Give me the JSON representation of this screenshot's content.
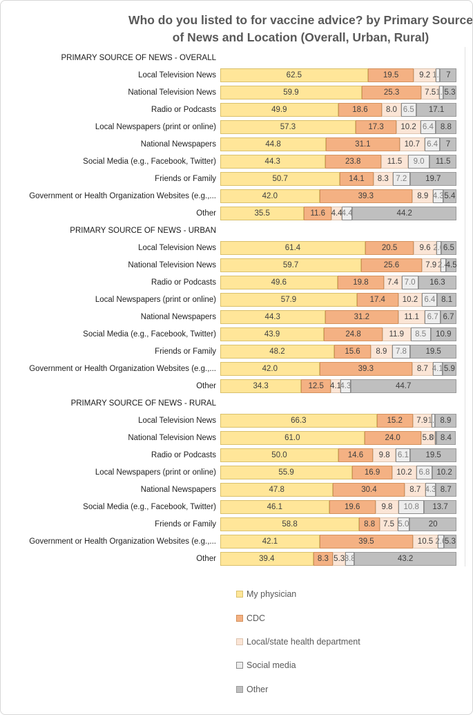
{
  "chart_data": {
    "type": "bar",
    "stacked": true,
    "orientation": "horizontal",
    "title": "Who do you listed to for vaccine advice? by Primary Source of News and Location (Overall, Urban, Rural)",
    "xlim": [
      0,
      100
    ],
    "grid": false,
    "legend_position": "bottom",
    "title_color": "#595959",
    "series": [
      {
        "name": "My physician",
        "color": "#FFE699",
        "border_color": "#d9c06b",
        "label_color": "#3f3f3f"
      },
      {
        "name": "CDC",
        "color": "#F4B183",
        "border_color": "#d3915c",
        "label_color": "#3f3f3f"
      },
      {
        "name": "Local/state  health department",
        "color": "#FBE5D6",
        "border_color": "#dcc4af",
        "label_color": "#3f3f3f"
      },
      {
        "name": "Social media",
        "color": "#EDEDED",
        "border_color": "#8a8a8a",
        "label_color": "#7f7f7f"
      },
      {
        "name": "Other",
        "color": "#BFBFBF",
        "border_color": "#9a9a9a",
        "label_color": "#3f3f3f"
      }
    ],
    "sections": [
      {
        "header": "PRIMARY SOURCE OF NEWS - OVERALL",
        "rows": [
          {
            "label": "Local Television News",
            "values": [
              "62.5",
              "19.5",
              "9.2",
              "1.9",
              "7"
            ]
          },
          {
            "label": "National Television News",
            "values": [
              "59.9",
              "25.3",
              "7.5",
              "1.9",
              "5.3"
            ]
          },
          {
            "label": "Radio or Podcasts",
            "values": [
              "49.9",
              "18.6",
              "8.0",
              "6.5",
              "17.1"
            ]
          },
          {
            "label": "Local Newspapers (print or online)",
            "values": [
              "57.3",
              "17.3",
              "10.2",
              "6.4",
              "8.8"
            ]
          },
          {
            "label": "National Newspapers",
            "values": [
              "44.8",
              "31.1",
              "10.7",
              "6.4",
              "7"
            ]
          },
          {
            "label": "Social Media (e.g., Facebook, Twitter)",
            "values": [
              "44.3",
              "23.8",
              "11.5",
              "9.0",
              "11.5"
            ]
          },
          {
            "label": "Friends or Family",
            "values": [
              "50.7",
              "14.1",
              "8.3",
              "7.2",
              "19.7"
            ]
          },
          {
            "label": "Government or Health Organization Websites (e.g.,...",
            "values": [
              "42.0",
              "39.3",
              "8.9",
              "4.3",
              "5.4"
            ]
          },
          {
            "label": "Other",
            "values": [
              "35.5",
              "11.6",
              "4.4",
              "4.4",
              "44.2"
            ]
          }
        ]
      },
      {
        "header": "PRIMARY SOURCE OF NEWS - URBAN",
        "rows": [
          {
            "label": "Local Television News",
            "values": [
              "61.4",
              "20.5",
              "9.6",
              "2.0",
              "6.5"
            ]
          },
          {
            "label": "National Television News",
            "values": [
              "59.7",
              "25.6",
              "7.9",
              "2.4",
              "4.5"
            ]
          },
          {
            "label": "Radio or Podcasts",
            "values": [
              "49.6",
              "19.8",
              "7.4",
              "7.0",
              "16.3"
            ]
          },
          {
            "label": "Local Newspapers (print or online)",
            "values": [
              "57.9",
              "17.4",
              "10.2",
              "6.4",
              "8.1"
            ]
          },
          {
            "label": "National Newspapers",
            "values": [
              "44.3",
              "31.2",
              "11.1",
              "6.7",
              "6.7"
            ]
          },
          {
            "label": "Social Media (e.g., Facebook, Twitter)",
            "values": [
              "43.9",
              "24.8",
              "11.9",
              "8.5",
              "10.9"
            ]
          },
          {
            "label": "Friends or Family",
            "values": [
              "48.2",
              "15.6",
              "8.9",
              "7.8",
              "19.5"
            ]
          },
          {
            "label": "Government or Health Organization Websites (e.g.,...",
            "values": [
              "42.0",
              "39.3",
              "8.7",
              "4.1",
              "5.9"
            ]
          },
          {
            "label": "Other",
            "values": [
              "34.3",
              "12.5",
              "4.1",
              "4.3",
              "44.7"
            ]
          }
        ]
      },
      {
        "header": "PRIMARY SOURCE OF NEWS - RURAL",
        "rows": [
          {
            "label": "Local Television News",
            "values": [
              "66.3",
              "15.2",
              "7.9",
              "1.6",
              "8.9"
            ]
          },
          {
            "label": "National Television News",
            "values": [
              "61.0",
              "24.0",
              "5.8",
              "0.6",
              "8.4"
            ]
          },
          {
            "label": "Radio or Podcasts",
            "values": [
              "50.0",
              "14.6",
              "9.8",
              "6.1",
              "19.5"
            ]
          },
          {
            "label": "Local Newspapers (print or online)",
            "values": [
              "55.9",
              "16.9",
              "10.2",
              "6.8",
              "10.2"
            ]
          },
          {
            "label": "National Newspapers",
            "values": [
              "47.8",
              "30.4",
              "8.7",
              "4.3",
              "8.7"
            ]
          },
          {
            "label": "Social Media (e.g., Facebook, Twitter)",
            "values": [
              "46.1",
              "19.6",
              "9.8",
              "10.8",
              "13.7"
            ]
          },
          {
            "label": "Friends or Family",
            "values": [
              "58.8",
              "8.8",
              "7.5",
              "5.0",
              "20"
            ]
          },
          {
            "label": "Government or Health Organization Websites (e.g.,...",
            "values": [
              "42.1",
              "39.5",
              "10.5",
              "2.6",
              "5.3"
            ]
          },
          {
            "label": "Other",
            "values": [
              "39.4",
              "8.3",
              "5.3",
              "3.8",
              "43.2"
            ]
          }
        ]
      }
    ]
  }
}
